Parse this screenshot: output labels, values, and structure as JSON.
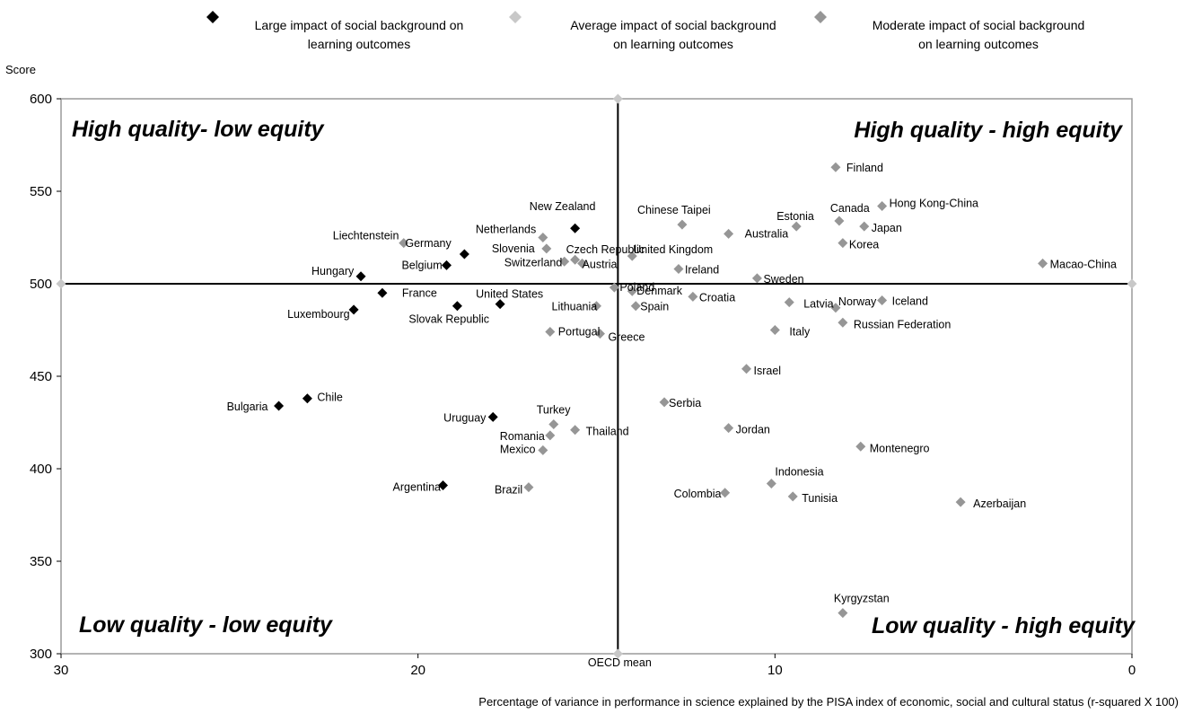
{
  "chart_data": {
    "type": "scatter",
    "xlabel": "Percentage of variance in performance in science explained by the PISA index of economic, social and cultural status (r-squared X 100)",
    "ylabel": "Score",
    "xlim": [
      30,
      0
    ],
    "ylim": [
      300,
      600
    ],
    "x_reversed": true,
    "x_ticks": [
      30,
      20,
      10,
      0
    ],
    "y_ticks": [
      300,
      350,
      400,
      450,
      500,
      550,
      600
    ],
    "grid": false,
    "legend_position": "top",
    "reference_lines": {
      "x": 14.4,
      "y": 500,
      "label": "OECD mean"
    },
    "quadrant_labels": {
      "top_left": "High quality- low equity",
      "top_right": "High quality - high equity",
      "bottom_left": "Low quality - low equity",
      "bottom_right": "Low quality - high equity"
    },
    "series": [
      {
        "name": "Large impact of social background on learning outcomes",
        "color": "#000000",
        "points": [
          {
            "label": "New Zealand",
            "x": 15.6,
            "y": 530
          },
          {
            "label": "Germany",
            "x": 18.7,
            "y": 516
          },
          {
            "label": "Belgium",
            "x": 19.2,
            "y": 510
          },
          {
            "label": "Hungary",
            "x": 21.6,
            "y": 504
          },
          {
            "label": "France",
            "x": 21.0,
            "y": 495
          },
          {
            "label": "Luxembourg",
            "x": 21.8,
            "y": 486
          },
          {
            "label": "Slovak Republic",
            "x": 18.9,
            "y": 488
          },
          {
            "label": "United States",
            "x": 17.7,
            "y": 489
          },
          {
            "label": "Bulgaria",
            "x": 23.9,
            "y": 434
          },
          {
            "label": "Chile",
            "x": 23.1,
            "y": 438
          },
          {
            "label": "Uruguay",
            "x": 17.9,
            "y": 428
          },
          {
            "label": "Argentina",
            "x": 19.3,
            "y": 391
          }
        ]
      },
      {
        "name": "Average impact of social background on learning outcomes",
        "color": "#c8c8c8",
        "points": [
          {
            "label": "",
            "x": 14.4,
            "y": 600
          },
          {
            "label": "",
            "x": 30,
            "y": 500
          },
          {
            "label": "",
            "x": 0,
            "y": 500
          },
          {
            "label": "OECD mean",
            "x": 14.4,
            "y": 300
          }
        ]
      },
      {
        "name": "Moderate impact of social background on learning outcomes",
        "color": "#969696",
        "points": [
          {
            "label": "Finland",
            "x": 8.3,
            "y": 563
          },
          {
            "label": "Hong Kong-China",
            "x": 7.0,
            "y": 542
          },
          {
            "label": "Canada",
            "x": 8.2,
            "y": 534
          },
          {
            "label": "Japan",
            "x": 7.5,
            "y": 531
          },
          {
            "label": "Estonia",
            "x": 9.4,
            "y": 531
          },
          {
            "label": "Chinese Taipei",
            "x": 12.6,
            "y": 532
          },
          {
            "label": "Australia",
            "x": 11.3,
            "y": 527
          },
          {
            "label": "Korea",
            "x": 8.1,
            "y": 522
          },
          {
            "label": "Liechtenstein",
            "x": 20.4,
            "y": 522
          },
          {
            "label": "Netherlands",
            "x": 16.5,
            "y": 525
          },
          {
            "label": "Slovenia",
            "x": 16.4,
            "y": 519
          },
          {
            "label": "Czech Republic",
            "x": 15.6,
            "y": 513
          },
          {
            "label": "United Kingdom",
            "x": 14.0,
            "y": 515
          },
          {
            "label": "Switzerland",
            "x": 15.9,
            "y": 512
          },
          {
            "label": "Austria",
            "x": 15.4,
            "y": 511
          },
          {
            "label": "Macao-China",
            "x": 2.5,
            "y": 511
          },
          {
            "label": "Ireland",
            "x": 12.7,
            "y": 508
          },
          {
            "label": "Sweden",
            "x": 10.5,
            "y": 503
          },
          {
            "label": "Poland",
            "x": 14.5,
            "y": 498
          },
          {
            "label": "Denmark",
            "x": 14.0,
            "y": 496
          },
          {
            "label": "Croatia",
            "x": 12.3,
            "y": 493
          },
          {
            "label": "Latvia",
            "x": 9.6,
            "y": 490
          },
          {
            "label": "Iceland",
            "x": 7.0,
            "y": 491
          },
          {
            "label": "Norway",
            "x": 8.3,
            "y": 487
          },
          {
            "label": "Lithuania",
            "x": 15.0,
            "y": 488
          },
          {
            "label": "Spain",
            "x": 13.9,
            "y": 488
          },
          {
            "label": "Russian Federation",
            "x": 8.1,
            "y": 479
          },
          {
            "label": "Italy",
            "x": 10.0,
            "y": 475
          },
          {
            "label": "Portugal",
            "x": 16.3,
            "y": 474
          },
          {
            "label": "Greece",
            "x": 14.9,
            "y": 473
          },
          {
            "label": "Israel",
            "x": 10.8,
            "y": 454
          },
          {
            "label": "Serbia",
            "x": 13.1,
            "y": 436
          },
          {
            "label": "Turkey",
            "x": 16.2,
            "y": 424
          },
          {
            "label": "Thailand",
            "x": 15.6,
            "y": 421
          },
          {
            "label": "Jordan",
            "x": 11.3,
            "y": 422
          },
          {
            "label": "Romania",
            "x": 16.3,
            "y": 418
          },
          {
            "label": "Montenegro",
            "x": 7.6,
            "y": 412
          },
          {
            "label": "Mexico",
            "x": 16.5,
            "y": 410
          },
          {
            "label": "Indonesia",
            "x": 10.1,
            "y": 392
          },
          {
            "label": "Brazil",
            "x": 16.9,
            "y": 390
          },
          {
            "label": "Colombia",
            "x": 11.4,
            "y": 387
          },
          {
            "label": "Tunisia",
            "x": 9.5,
            "y": 385
          },
          {
            "label": "Azerbaijan",
            "x": 4.8,
            "y": 382
          },
          {
            "label": "Kyrgyzstan",
            "x": 8.1,
            "y": 322
          }
        ]
      }
    ]
  }
}
